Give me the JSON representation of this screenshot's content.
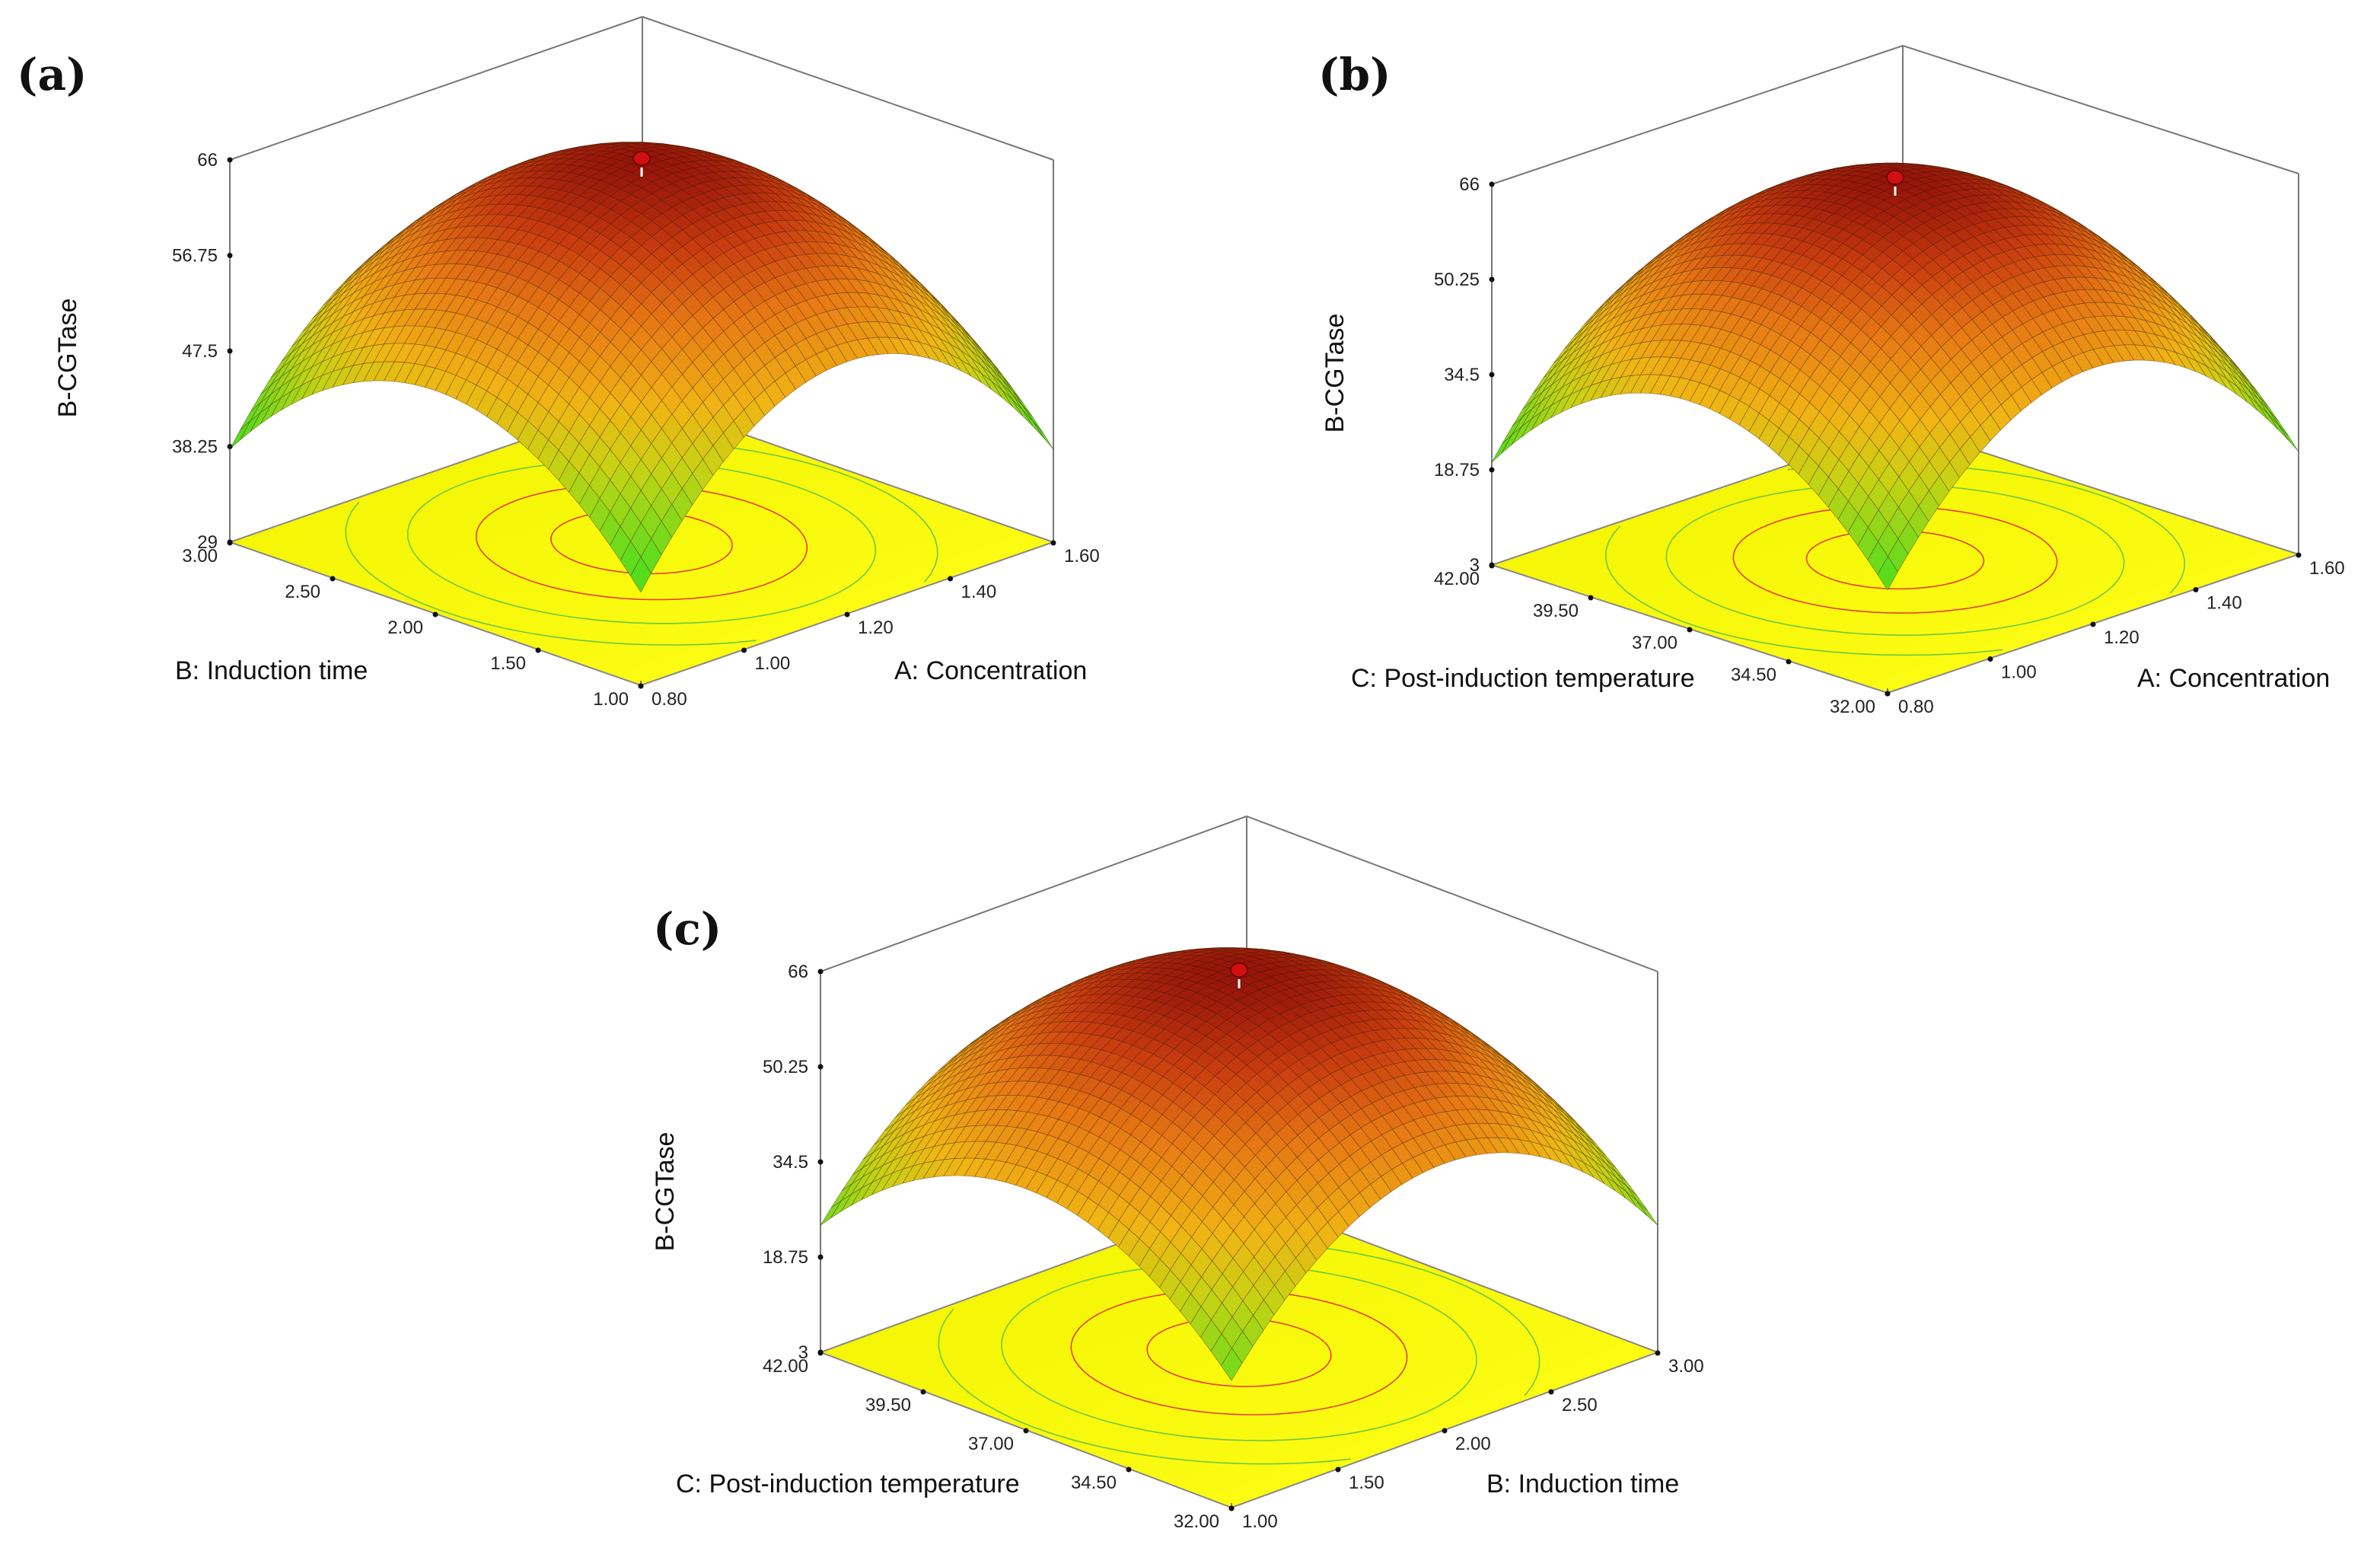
{
  "chart_data": [
    {
      "type": "surface3d",
      "panel": "(a)",
      "zlabel": "B-CGTase",
      "xlabel": "A: Concentration",
      "ylabel": "B: Induction time",
      "x_ticks": [
        "0.80",
        "1.00",
        "1.20",
        "1.40",
        "1.60"
      ],
      "y_ticks": [
        "1.00",
        "1.50",
        "2.00",
        "2.50",
        "3.00"
      ],
      "z_ticks": [
        "29",
        "38.25",
        "47.5",
        "56.75",
        "66"
      ],
      "xlim": [
        0.8,
        1.6
      ],
      "ylim": [
        1.0,
        3.0
      ],
      "zlim": [
        29,
        66
      ],
      "optimum": {
        "x": 1.2,
        "y": 2.0,
        "z": 66
      },
      "edge_min": 38
    },
    {
      "type": "surface3d",
      "panel": "(b)",
      "zlabel": "B-CGTase",
      "xlabel": "A: Concentration",
      "ylabel": "C: Post-induction temperature",
      "x_ticks": [
        "0.80",
        "1.00",
        "1.20",
        "1.40",
        "1.60"
      ],
      "y_ticks": [
        "32.00",
        "34.50",
        "37.00",
        "39.50",
        "42.00"
      ],
      "z_ticks": [
        "3",
        "18.75",
        "34.5",
        "50.25",
        "66"
      ],
      "xlim": [
        0.8,
        1.6
      ],
      "ylim": [
        32.0,
        42.0
      ],
      "zlim": [
        3,
        66
      ],
      "optimum": {
        "x": 1.2,
        "y": 37.0,
        "z": 66
      },
      "edge_min": 20
    },
    {
      "type": "surface3d",
      "panel": "(c)",
      "zlabel": "B-CGTase",
      "xlabel": "B: Induction time",
      "ylabel": "C: Post-induction temperature",
      "x_ticks": [
        "1.00",
        "1.50",
        "2.00",
        "2.50",
        "3.00"
      ],
      "y_ticks": [
        "32.00",
        "34.50",
        "37.00",
        "39.50",
        "42.00"
      ],
      "z_ticks": [
        "3",
        "18.75",
        "34.5",
        "50.25",
        "66"
      ],
      "xlim": [
        1.0,
        3.0
      ],
      "ylim": [
        32.0,
        42.0
      ],
      "zlim": [
        3,
        66
      ],
      "optimum": {
        "x": 2.0,
        "y": 37.0,
        "z": 66
      },
      "edge_min": 24
    }
  ]
}
